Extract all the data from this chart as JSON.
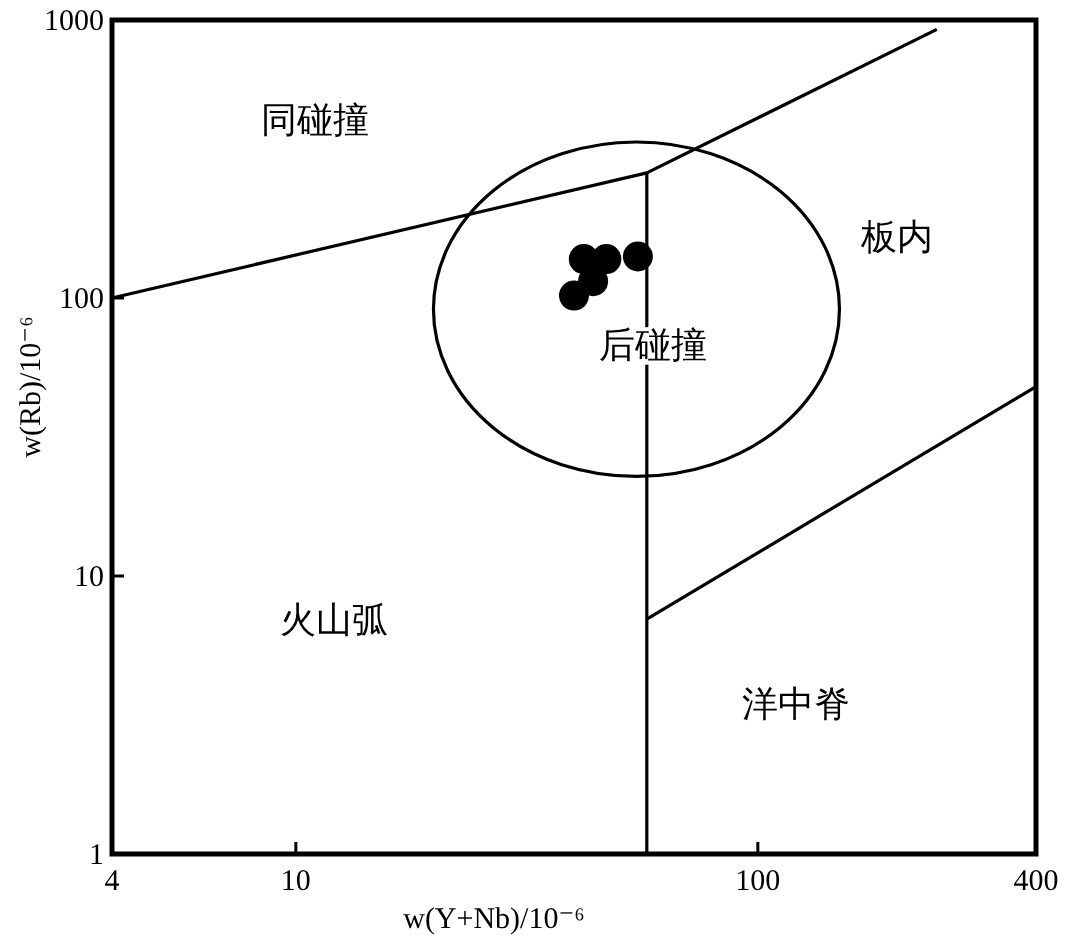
{
  "chart_data": {
    "type": "scatter",
    "log": "xy",
    "xlim": [
      4,
      400
    ],
    "ylim": [
      1,
      1000
    ],
    "xticks": [
      4,
      10,
      100,
      400
    ],
    "yticks": [
      1,
      10,
      100,
      1000
    ],
    "xlabel": "w(Y+Nb)/10⁻⁶",
    "ylabel": "w(Rb)/10⁻⁶",
    "marker": "circle",
    "grid": false,
    "annotations": [
      "同碰撞",
      "后碰撞",
      "板内",
      "火山弧",
      "洋中脊"
    ],
    "series": [
      {
        "color": "#000000",
        "x": [
          42,
          47,
          55,
          44,
          40
        ],
        "values": [
          138,
          138,
          141,
          115,
          102
        ]
      },
      {
        "type": "line",
        "marker": "none",
        "color": "#000000",
        "x": [
          4,
          57.5,
          244
        ],
        "values": [
          100,
          282,
          925
        ]
      },
      {
        "type": "line",
        "marker": "none",
        "color": "#000000",
        "x": [
          57.5,
          57.5
        ],
        "values": [
          282,
          1
        ]
      },
      {
        "type": "line",
        "marker": "none",
        "color": "#000000",
        "x": [
          57.5,
          400
        ],
        "values": [
          7,
          48
        ]
      }
    ]
  }
}
